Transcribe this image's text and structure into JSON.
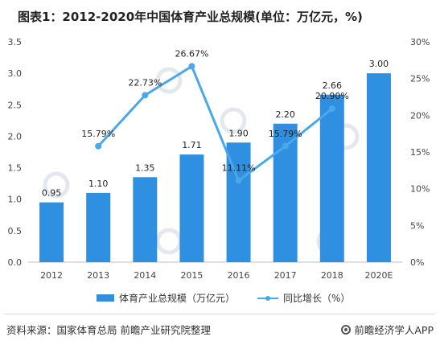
{
  "title": "图表1：2012-2020年中国体育产业总规模(单位：万亿元，%)",
  "chart_data": {
    "type": "bar",
    "categories": [
      "2012",
      "2013",
      "2014",
      "2015",
      "2016",
      "2017",
      "2018",
      "2020E"
    ],
    "series": [
      {
        "name": "体育产业总规模（万亿元）",
        "type": "bar",
        "axis": "left",
        "values": [
          0.95,
          1.1,
          1.35,
          1.71,
          1.9,
          2.2,
          2.66,
          3.0
        ],
        "labels": [
          "0.95",
          "1.10",
          "1.35",
          "1.71",
          "1.90",
          "2.20",
          "2.66",
          "3.00"
        ]
      },
      {
        "name": "同比增长（%）",
        "type": "line",
        "axis": "right",
        "values": [
          null,
          15.79,
          22.73,
          26.67,
          11.11,
          15.79,
          20.9,
          null
        ],
        "labels": [
          "",
          "15.79%",
          "22.73%",
          "26.67%",
          "11.11%",
          "15.79%",
          "20.90%",
          ""
        ]
      }
    ],
    "ylim": [
      0,
      3.5
    ],
    "y2lim": [
      0,
      30
    ],
    "yticks": [
      "0.0",
      "0.5",
      "1.0",
      "1.5",
      "2.0",
      "2.5",
      "3.0",
      "3.5"
    ],
    "y2ticks": [
      "0%",
      "5%",
      "10%",
      "15%",
      "20%",
      "25%",
      "30%"
    ],
    "grid": false,
    "legend": "bottom",
    "colors": {
      "bar": "#2f8fe0",
      "line": "#4aa8ea"
    }
  },
  "legend": {
    "bar_label": "体育产业总规模（万亿元）",
    "line_label": "同比增长（%）"
  },
  "footer": {
    "source": "资料来源：国家体育总局 前瞻产业研究院整理",
    "brand": "前瞻经济学人APP"
  }
}
